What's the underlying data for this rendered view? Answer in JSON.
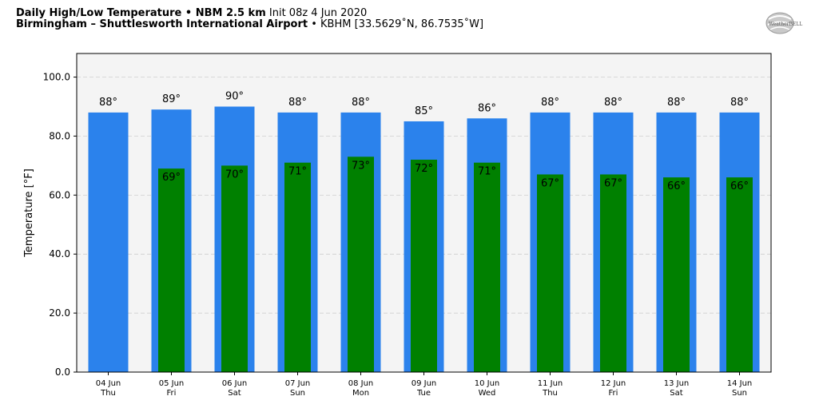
{
  "header": {
    "title": "Daily High/Low Temperature • NBM 2.5 km",
    "init": "Init 08z 4 Jun 2020",
    "location": "Birmingham – Shuttlesworth International Airport",
    "station": "• KBHM [33.5629˚N, 86.7535˚W]"
  },
  "logo": {
    "text": "WeatherBELL"
  },
  "colors": {
    "high": "#2b82ec",
    "low": "#008000",
    "plot_bg": "#f4f4f4"
  },
  "chart_data": {
    "type": "bar",
    "ylabel": "Temperature [°F]",
    "ylim": [
      0,
      108
    ],
    "yticks": [
      "0.0",
      "20.0",
      "40.0",
      "60.0",
      "80.0",
      "100.0"
    ],
    "ytick_values": [
      0,
      20,
      40,
      60,
      80,
      100
    ],
    "grid": true,
    "categories": [
      "04 Jun",
      "05 Jun",
      "06 Jun",
      "07 Jun",
      "08 Jun",
      "09 Jun",
      "10 Jun",
      "11 Jun",
      "12 Jun",
      "13 Jun",
      "14 Jun"
    ],
    "weekdays": [
      "Thu",
      "Fri",
      "Sat",
      "Sun",
      "Mon",
      "Tue",
      "Wed",
      "Thu",
      "Fri",
      "Sat",
      "Sun"
    ],
    "series": [
      {
        "values": [
          88,
          89,
          90,
          88,
          88,
          85,
          86,
          88,
          88,
          88,
          88
        ],
        "labels": [
          "88°",
          "89°",
          "90°",
          "88°",
          "88°",
          "85°",
          "86°",
          "88°",
          "88°",
          "88°",
          "88°"
        ]
      },
      {
        "values": [
          null,
          69,
          70,
          71,
          73,
          72,
          71,
          67,
          67,
          66,
          66
        ],
        "labels": [
          "",
          "69°",
          "70°",
          "71°",
          "73°",
          "72°",
          "71°",
          "67°",
          "67°",
          "66°",
          "66°"
        ]
      }
    ]
  }
}
